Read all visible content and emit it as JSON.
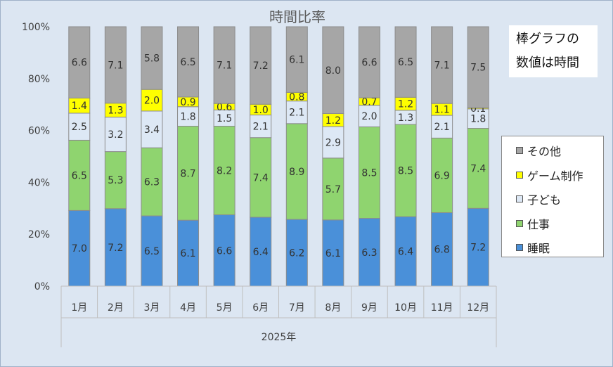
{
  "chart_data": {
    "type": "bar",
    "stacked": "percent",
    "title": "時間比率",
    "categories": [
      "1月",
      "2月",
      "3月",
      "4月",
      "5月",
      "6月",
      "7月",
      "8月",
      "9月",
      "10月",
      "11月",
      "12月"
    ],
    "category_group": "2025年",
    "series": [
      {
        "name": "睡眠",
        "color": "#4a90d9",
        "values": [
          7.0,
          7.2,
          6.5,
          6.1,
          6.6,
          6.4,
          6.2,
          6.1,
          6.3,
          6.4,
          6.8,
          7.2
        ]
      },
      {
        "name": "仕事",
        "color": "#8fd46f",
        "values": [
          6.5,
          5.3,
          6.3,
          8.7,
          8.2,
          7.4,
          8.9,
          5.7,
          8.5,
          8.5,
          6.9,
          7.4
        ]
      },
      {
        "name": "子ども",
        "color": "#dde8f5",
        "values": [
          2.5,
          3.2,
          3.4,
          1.8,
          1.5,
          2.1,
          2.1,
          2.9,
          2.0,
          1.3,
          2.1,
          1.8
        ]
      },
      {
        "name": "ゲーム制作",
        "color": "#ffff00",
        "values": [
          1.4,
          1.3,
          2.0,
          0.9,
          0.6,
          1.0,
          0.8,
          1.2,
          0.7,
          1.2,
          1.1,
          0.1
        ]
      },
      {
        "name": "その他",
        "color": "#a6a6a6",
        "values": [
          6.6,
          7.1,
          5.8,
          6.5,
          7.1,
          7.2,
          6.1,
          8.0,
          6.6,
          6.5,
          7.1,
          7.5
        ]
      }
    ],
    "data_labels": [
      [
        "7.0",
        "7.2",
        "6.5",
        "6.1",
        "6.6",
        "6.4",
        "6.2",
        "6.1",
        "6.3",
        "6.4",
        "6.8",
        "7.2"
      ],
      [
        "6.5",
        "5.3",
        "6.3",
        "8.7",
        "8.2",
        "7.4",
        "8.9",
        "5.7",
        "8.5",
        "8.5",
        "6.9",
        "7.4"
      ],
      [
        "2.5",
        "3.2",
        "3.4",
        "1.8",
        "1.5",
        "2.1",
        "2.1",
        "2.9",
        "2.0",
        "1.3",
        "2.1",
        "1.8"
      ],
      [
        "1.4",
        "1.3",
        "2.0",
        "0.9",
        "0.6",
        "1.0",
        "0.8",
        "1.2",
        "0.7",
        "1.2",
        "1.1",
        "0.1"
      ],
      [
        "6.6",
        "7.1",
        "5.8",
        "6.5",
        "7.1",
        "7.2",
        "6.1",
        "8.0",
        "6.6",
        "6.5",
        "7.1",
        "7.5"
      ]
    ],
    "y_ticks": [
      "0%",
      "20%",
      "40%",
      "60%",
      "80%",
      "100%"
    ],
    "ylim": [
      0,
      100
    ],
    "grid": false,
    "legend_position": "right"
  },
  "note": {
    "line1": "棒グラフの",
    "line2": "数値は時間"
  },
  "colors": {
    "background": "#dce6f2",
    "border": "#7f7f7f"
  }
}
